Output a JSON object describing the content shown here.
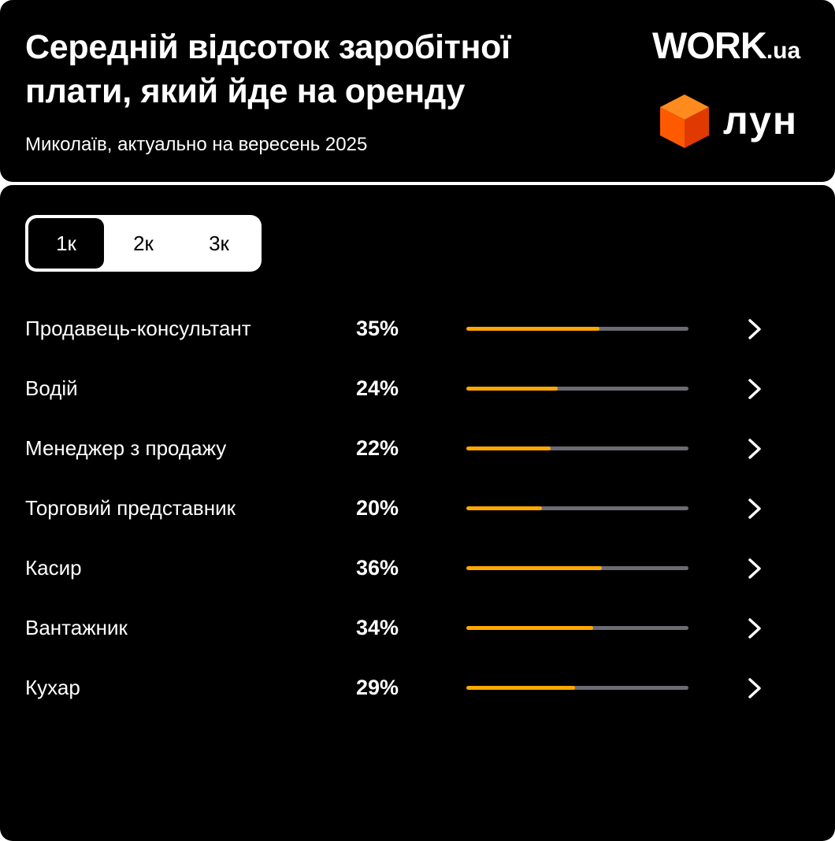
{
  "header": {
    "title": "Середній відсоток заробітної плати, який йде на оренду",
    "subtitle": "Миколаїв, актуально на вересень 2025",
    "logo_work_main": "WORK",
    "logo_work_suffix": ".ua",
    "logo_lun": "лун"
  },
  "tabs": [
    {
      "label": "1к",
      "active": true
    },
    {
      "label": "2к",
      "active": false
    },
    {
      "label": "3к",
      "active": false
    }
  ],
  "colors": {
    "background": "#000000",
    "bar_fill": "#ffa800",
    "bar_track": "#6b6b74",
    "lun_cube": "#ff5a00"
  },
  "icons": {
    "row_action": "chevron-right-icon",
    "brand": "cube-icon"
  },
  "rows": [
    {
      "name": "Продавець-консультант",
      "percent_label": "35%",
      "bar_fill_fraction": 0.6
    },
    {
      "name": "Водій",
      "percent_label": "24%",
      "bar_fill_fraction": 0.41
    },
    {
      "name": "Менеджер з продажу",
      "percent_label": "22%",
      "bar_fill_fraction": 0.38
    },
    {
      "name": "Торговий представник",
      "percent_label": "20%",
      "bar_fill_fraction": 0.34
    },
    {
      "name": "Касир",
      "percent_label": "36%",
      "bar_fill_fraction": 0.61
    },
    {
      "name": "Вантажник",
      "percent_label": "34%",
      "bar_fill_fraction": 0.57
    },
    {
      "name": "Кухар",
      "percent_label": "29%",
      "bar_fill_fraction": 0.49
    }
  ]
}
